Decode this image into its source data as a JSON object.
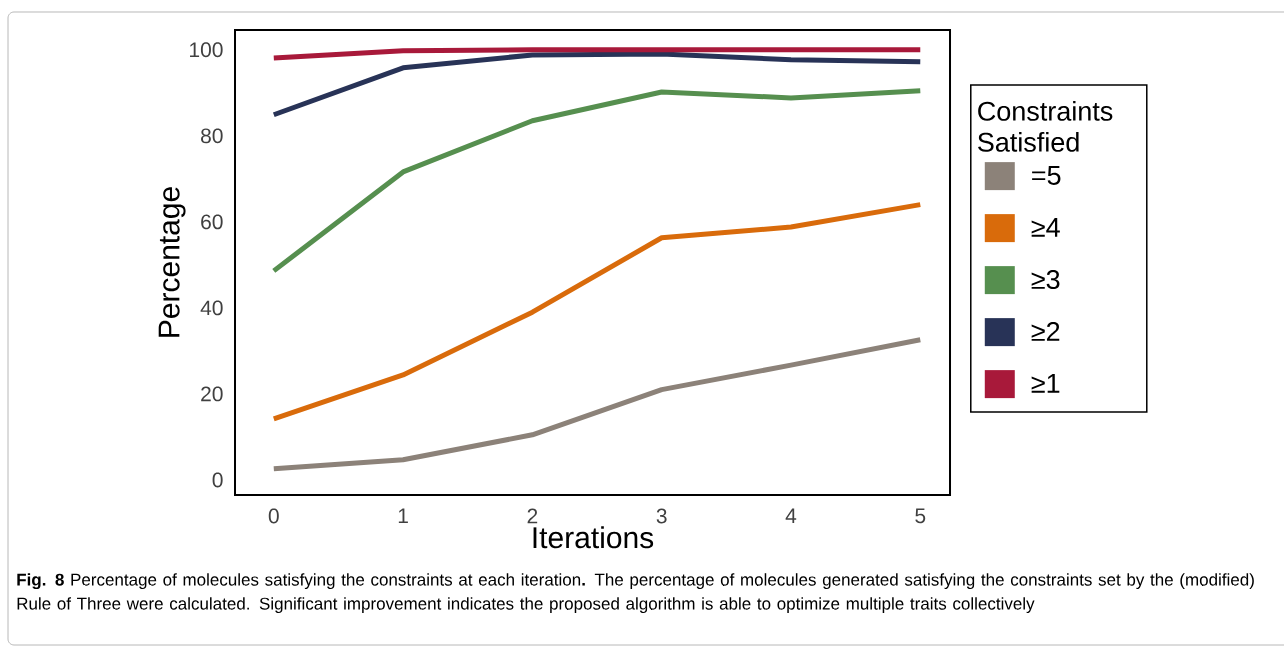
{
  "chart_data": {
    "type": "line",
    "xlabel": "Iterations",
    "ylabel": "Percentage",
    "legend_title": "Constraints Satisfied",
    "x": [
      0,
      1,
      2,
      3,
      4,
      5
    ],
    "series": [
      {
        "name": "=5",
        "color": "#8c8279",
        "values": [
          2.6,
          4.7,
          10.5,
          21,
          26.7,
          32.6
        ]
      },
      {
        "name": "≥4",
        "color": "#d96b0b",
        "values": [
          14.2,
          24.4,
          39,
          56.3,
          58.8,
          64
        ]
      },
      {
        "name": "≥3",
        "color": "#568f4f",
        "values": [
          48.6,
          71.6,
          83.5,
          90.2,
          88.8,
          90.5
        ]
      },
      {
        "name": "≥2",
        "color": "#283357",
        "values": [
          84.9,
          95.8,
          98.8,
          99,
          97.7,
          97.2
        ]
      },
      {
        "name": "≥1",
        "color": "#a8193a",
        "values": [
          98.1,
          99.8,
          100,
          100,
          100,
          100
        ]
      }
    ],
    "xlim": [
      -0.3,
      5.23
    ],
    "xticks": [
      0,
      1,
      2,
      3,
      4,
      5
    ],
    "ylim": [
      -3.5,
      104.6
    ],
    "yticks": [
      0,
      20,
      40,
      60,
      80,
      100
    ],
    "grid": false,
    "legend": "right",
    "marker": "none",
    "line_style": "solid",
    "annotations": [
      "**Fig. 8** Percentage of molecules satisfying the constraints at each iteration**.** The percentage of molecules generated satisfying the constraints set by the (modified) Rule of Three were calculated. Significant improvement indicates the proposed algorithm is able to optimize multiple traits collectively"
    ]
  }
}
